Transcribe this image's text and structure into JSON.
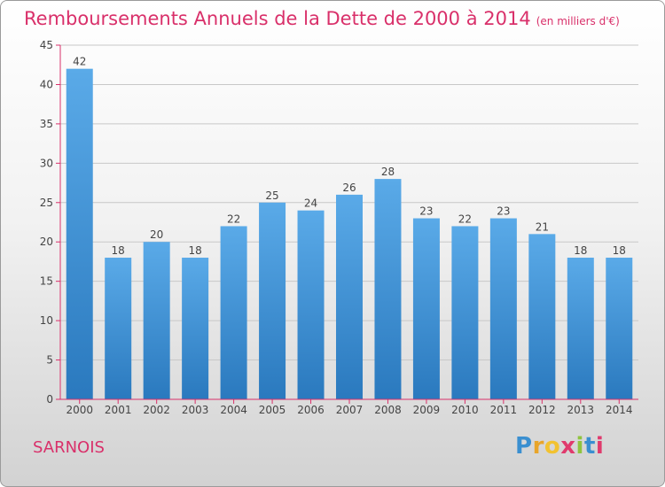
{
  "title": "Remboursements Annuels de la Dette de 2000 à 2014",
  "subtitle": "(en milliers d'€)",
  "location": "SARNOIS",
  "logo": {
    "letters": [
      "P",
      "r",
      "o",
      "x",
      "i",
      "t",
      "i"
    ],
    "colors": [
      "#3a8fd0",
      "#e8a52a",
      "#f2c230",
      "#e03a6d",
      "#8fc43f",
      "#3a8fd0",
      "#e03a6d"
    ]
  },
  "colors": {
    "accent": "#d9306a",
    "bar_light": "#5aaae8",
    "bar_dark": "#2a79be",
    "axis": "#d9306a",
    "grid": "#c8c8c8"
  },
  "chart_data": {
    "type": "bar",
    "title": "Remboursements Annuels de la Dette de 2000 à 2014",
    "subtitle": "(en milliers d'€)",
    "categories": [
      "2000",
      "2001",
      "2002",
      "2003",
      "2004",
      "2005",
      "2006",
      "2007",
      "2008",
      "2009",
      "2010",
      "2011",
      "2012",
      "2013",
      "2014"
    ],
    "values": [
      42,
      18,
      20,
      18,
      22,
      25,
      24,
      26,
      28,
      23,
      22,
      23,
      21,
      18,
      18
    ],
    "ylim": [
      0,
      45
    ],
    "yticks": [
      0,
      5,
      10,
      15,
      20,
      25,
      30,
      35,
      40,
      45
    ],
    "grid": true,
    "data_labels": true
  }
}
